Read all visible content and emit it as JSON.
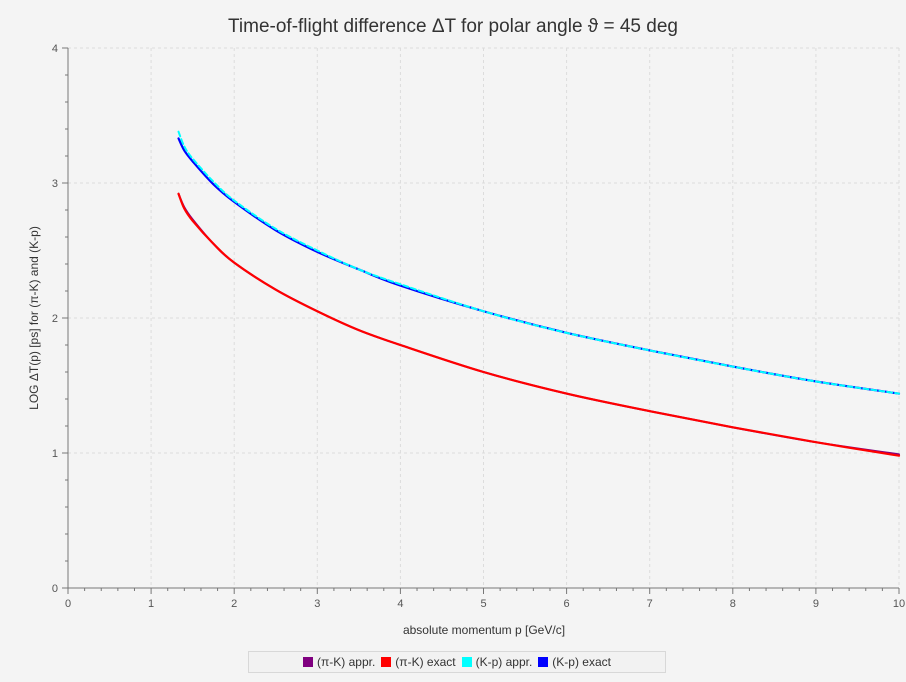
{
  "chart_data": {
    "type": "line",
    "title": "Time-of-flight difference ΔT for polar angle ϑ = 45 deg",
    "xlabel": "absolute momentum p [GeV/c]",
    "ylabel": "LOG ΔT(p) [ps] for (π-K) and (K-p)",
    "xlim": [
      0,
      10
    ],
    "ylim": [
      0,
      4
    ],
    "x_ticks": [
      "0",
      "1",
      "2",
      "3",
      "4",
      "5",
      "6",
      "7",
      "8",
      "9",
      "10"
    ],
    "y_ticks": [
      "0",
      "1",
      "2",
      "3",
      "4"
    ],
    "grid": true,
    "legend_position": "bottom",
    "series": [
      {
        "name": "(π-K) appr.",
        "color": "#800080",
        "x": [
          1.33,
          1.4,
          1.5,
          1.75,
          2,
          2.5,
          3,
          3.5,
          4,
          5,
          6,
          7,
          8,
          9,
          10
        ],
        "y": [
          2.92,
          2.82,
          2.73,
          2.55,
          2.41,
          2.21,
          2.05,
          1.91,
          1.8,
          1.6,
          1.44,
          1.31,
          1.19,
          1.08,
          0.99
        ]
      },
      {
        "name": "(π-K) exact",
        "color": "#ff0000",
        "x": [
          1.33,
          1.4,
          1.5,
          1.75,
          2,
          2.5,
          3,
          3.5,
          4,
          5,
          6,
          7,
          8,
          9,
          10
        ],
        "y": [
          2.92,
          2.81,
          2.72,
          2.55,
          2.41,
          2.21,
          2.05,
          1.91,
          1.8,
          1.6,
          1.44,
          1.31,
          1.19,
          1.08,
          0.98
        ]
      },
      {
        "name": "(K-p) appr.",
        "color": "#00ffff",
        "x": [
          1.33,
          1.4,
          1.5,
          1.75,
          2,
          2.5,
          3,
          3.5,
          4,
          5,
          6,
          7,
          8,
          9,
          10
        ],
        "y": [
          3.38,
          3.27,
          3.18,
          3.01,
          2.87,
          2.66,
          2.5,
          2.36,
          2.25,
          2.05,
          1.89,
          1.76,
          1.64,
          1.53,
          1.44
        ]
      },
      {
        "name": "(K-p) exact",
        "color": "#0000ff",
        "x": [
          1.33,
          1.4,
          1.5,
          1.75,
          2,
          2.5,
          3,
          3.5,
          4,
          5,
          6,
          7,
          8,
          9,
          10
        ],
        "y": [
          3.33,
          3.24,
          3.16,
          2.99,
          2.86,
          2.65,
          2.49,
          2.36,
          2.24,
          2.05,
          1.89,
          1.76,
          1.64,
          1.53,
          1.44
        ]
      }
    ]
  }
}
